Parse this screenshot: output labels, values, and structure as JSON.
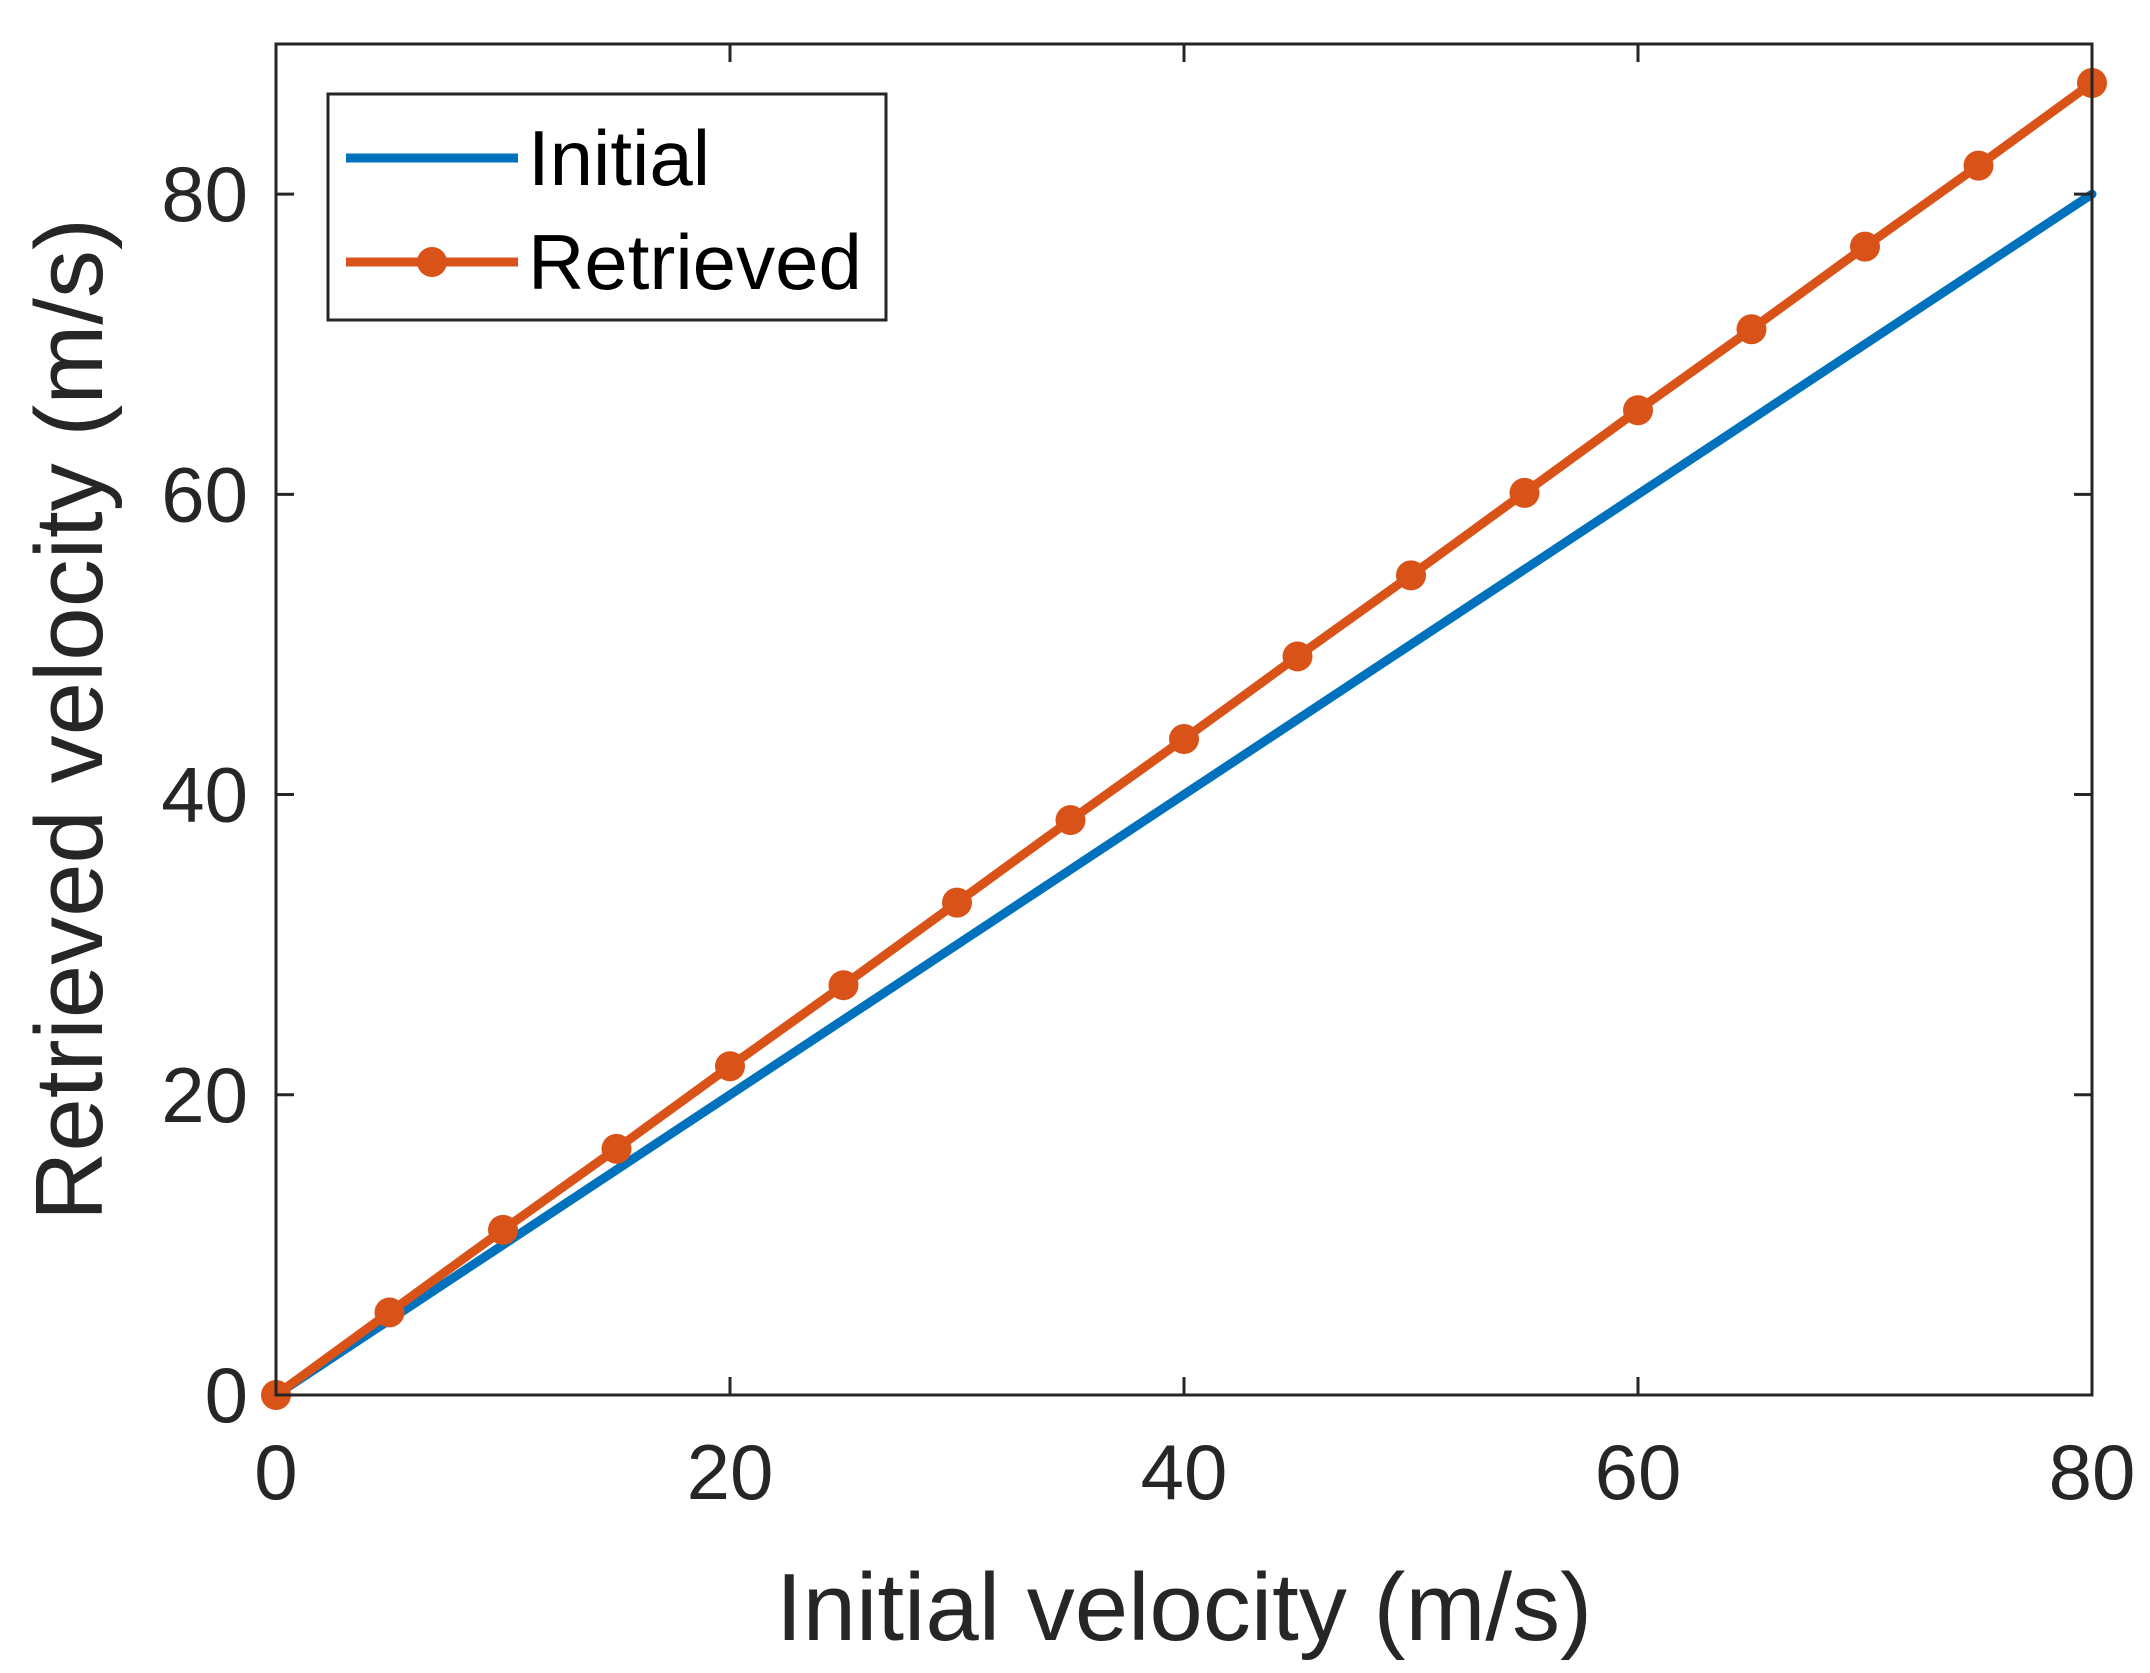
{
  "chart_data": {
    "type": "line",
    "xlabel": "Initial velocity (m/s)",
    "ylabel": "Retrieved velocity (m/s)",
    "xlim": [
      0,
      80
    ],
    "ylim": [
      0,
      90
    ],
    "xticks": [
      0,
      20,
      40,
      60,
      80
    ],
    "yticks": [
      0,
      20,
      40,
      60,
      80
    ],
    "grid": false,
    "legend_position": "top-left",
    "series": [
      {
        "name": "Initial",
        "color": "#0072BD",
        "marker": "none",
        "x": [
          0,
          80
        ],
        "y": [
          0,
          80
        ]
      },
      {
        "name": "Retrieved",
        "color": "#D95319",
        "marker": "circle",
        "x": [
          0,
          5,
          10,
          15,
          20,
          25,
          30,
          35,
          40,
          45,
          50,
          55,
          60,
          65,
          70,
          75,
          80
        ],
        "y": [
          0,
          5.5,
          11.0,
          16.4,
          21.9,
          27.3,
          32.8,
          38.3,
          43.7,
          49.2,
          54.6,
          60.1,
          65.6,
          71.0,
          76.5,
          81.9,
          87.4
        ]
      }
    ]
  }
}
